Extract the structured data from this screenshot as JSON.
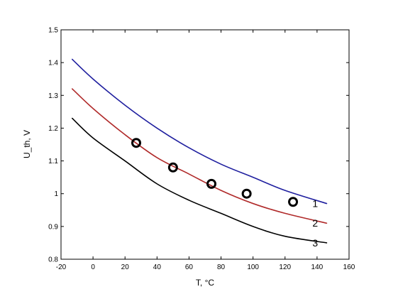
{
  "chart_data": {
    "type": "line",
    "title": "",
    "xlabel": "T, °C",
    "ylabel": "U_th, V",
    "xlim": [
      -20,
      160
    ],
    "ylim": [
      0.8,
      1.5
    ],
    "xticks": [
      -20,
      0,
      20,
      40,
      60,
      80,
      100,
      120,
      140,
      160
    ],
    "yticks": [
      0.8,
      0.9,
      1.0,
      1.1,
      1.2,
      1.3,
      1.4,
      1.5
    ],
    "xtick_labels": [
      "-20",
      "0",
      "20",
      "40",
      "60",
      "80",
      "100",
      "120",
      "140",
      "160"
    ],
    "ytick_labels": [
      "0.8",
      "0.9",
      "1",
      "1.1",
      "1.2",
      "1.3",
      "1.4",
      "1.5"
    ],
    "grid": false,
    "series": [
      {
        "label": "1",
        "color": "#1f1f9f",
        "x": [
          -13,
          0,
          20,
          40,
          60,
          80,
          100,
          120,
          146
        ],
        "y": [
          1.41,
          1.35,
          1.27,
          1.2,
          1.14,
          1.09,
          1.05,
          1.01,
          0.97
        ]
      },
      {
        "label": "2",
        "color": "#b02a2a",
        "x": [
          -13,
          0,
          20,
          40,
          60,
          80,
          100,
          120,
          146
        ],
        "y": [
          1.32,
          1.26,
          1.18,
          1.11,
          1.06,
          1.01,
          0.97,
          0.94,
          0.91
        ]
      },
      {
        "label": "3",
        "color": "#000000",
        "x": [
          -13,
          0,
          20,
          40,
          60,
          80,
          100,
          120,
          146
        ],
        "y": [
          1.23,
          1.17,
          1.1,
          1.03,
          0.98,
          0.94,
          0.9,
          0.87,
          0.85
        ]
      },
      {
        "type": "scatter",
        "marker": "open-circle",
        "color": "#000000",
        "x": [
          27,
          50,
          74,
          96,
          125
        ],
        "y": [
          1.155,
          1.08,
          1.03,
          1.0,
          0.975
        ]
      }
    ]
  }
}
